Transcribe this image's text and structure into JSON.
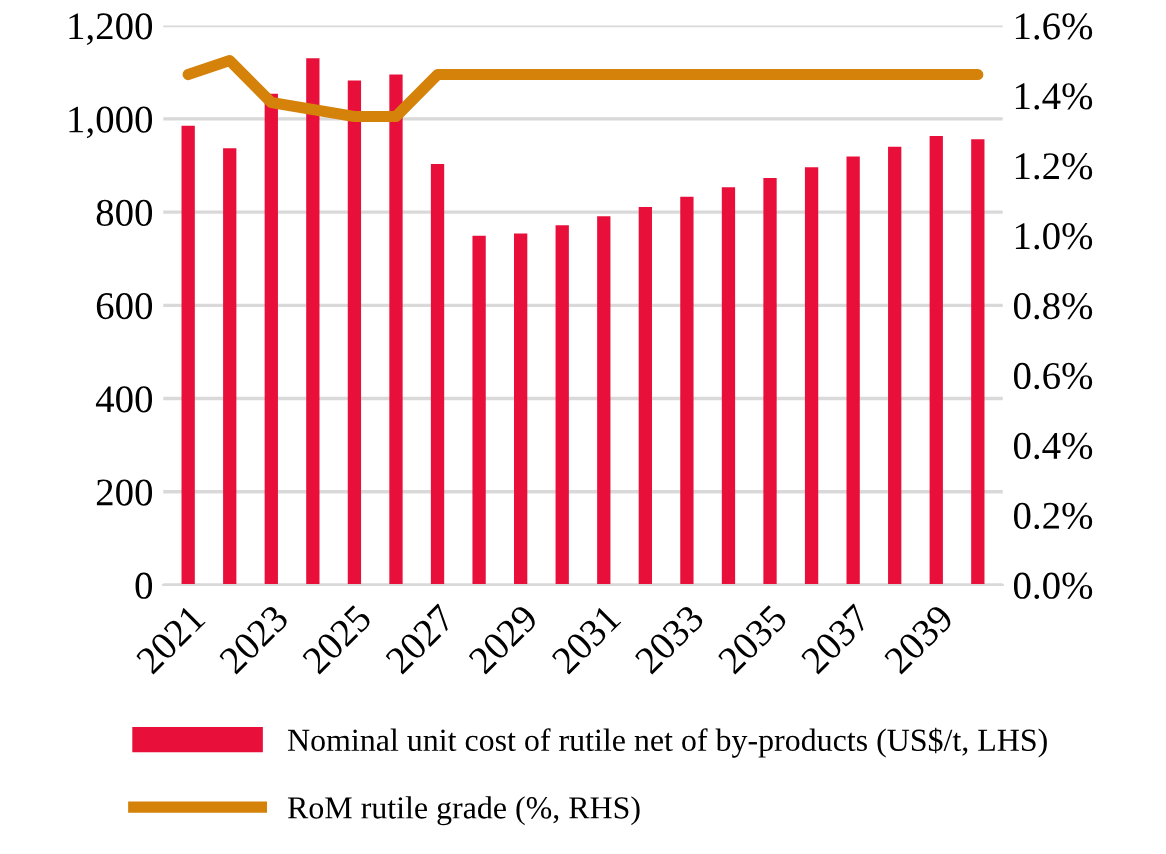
{
  "chart_data": {
    "type": "bar",
    "categories": [
      "2021",
      null,
      "2023",
      null,
      "2025",
      null,
      "2027",
      null,
      "2029",
      null,
      "2031",
      null,
      "2033",
      null,
      "2035",
      null,
      "2037",
      null,
      "2039",
      null
    ],
    "series": [
      {
        "name": "Nominal unit cost of rutile net of by-products (US$/t, LHS)",
        "color": "#e8103a",
        "values": [
          985,
          937,
          1054,
          1130,
          1082,
          1095,
          903,
          749,
          754,
          772,
          791,
          811,
          833,
          853,
          873,
          896,
          919,
          940,
          963,
          956
        ]
      },
      {
        "name": "RoM rutile grade (%, RHS)",
        "type": "line",
        "axis": "y2",
        "color": "#d4820a",
        "values": [
          1.46,
          1.5,
          1.38,
          1.36,
          1.34,
          1.34,
          1.46,
          1.46,
          1.46,
          1.46,
          1.46,
          1.46,
          1.46,
          1.46,
          1.46,
          1.46,
          1.46,
          1.46,
          1.46,
          1.46
        ]
      }
    ],
    "ylim": [
      0,
      1200
    ],
    "yticks": [
      0,
      {
        "value": 200,
        "label": "200"
      },
      {
        "value": 400,
        "label": "400"
      },
      {
        "value": 600,
        "label": "600"
      },
      {
        "value": 800,
        "label": "800"
      },
      {
        "value": 1000,
        "label": "1,000"
      },
      {
        "value": 1200,
        "label": "1,200"
      }
    ],
    "y2lim": [
      0,
      1.6
    ],
    "y2ticks": [
      {
        "value": 0,
        "label": "0.0%"
      },
      {
        "value": 0.2,
        "label": "0.2%"
      },
      {
        "value": 0.4,
        "label": "0.4%"
      },
      {
        "value": 0.6,
        "label": "0.6%"
      },
      {
        "value": 0.8,
        "label": "0.8%"
      },
      {
        "value": 1.0,
        "label": "1.0%"
      },
      {
        "value": 1.2,
        "label": "1.2%"
      },
      {
        "value": 1.4,
        "label": "1.4%"
      },
      {
        "value": 1.6,
        "label": "1.6%"
      }
    ],
    "grid": "y",
    "legend": "bottom",
    "marker": "none",
    "line_style": "solid"
  }
}
